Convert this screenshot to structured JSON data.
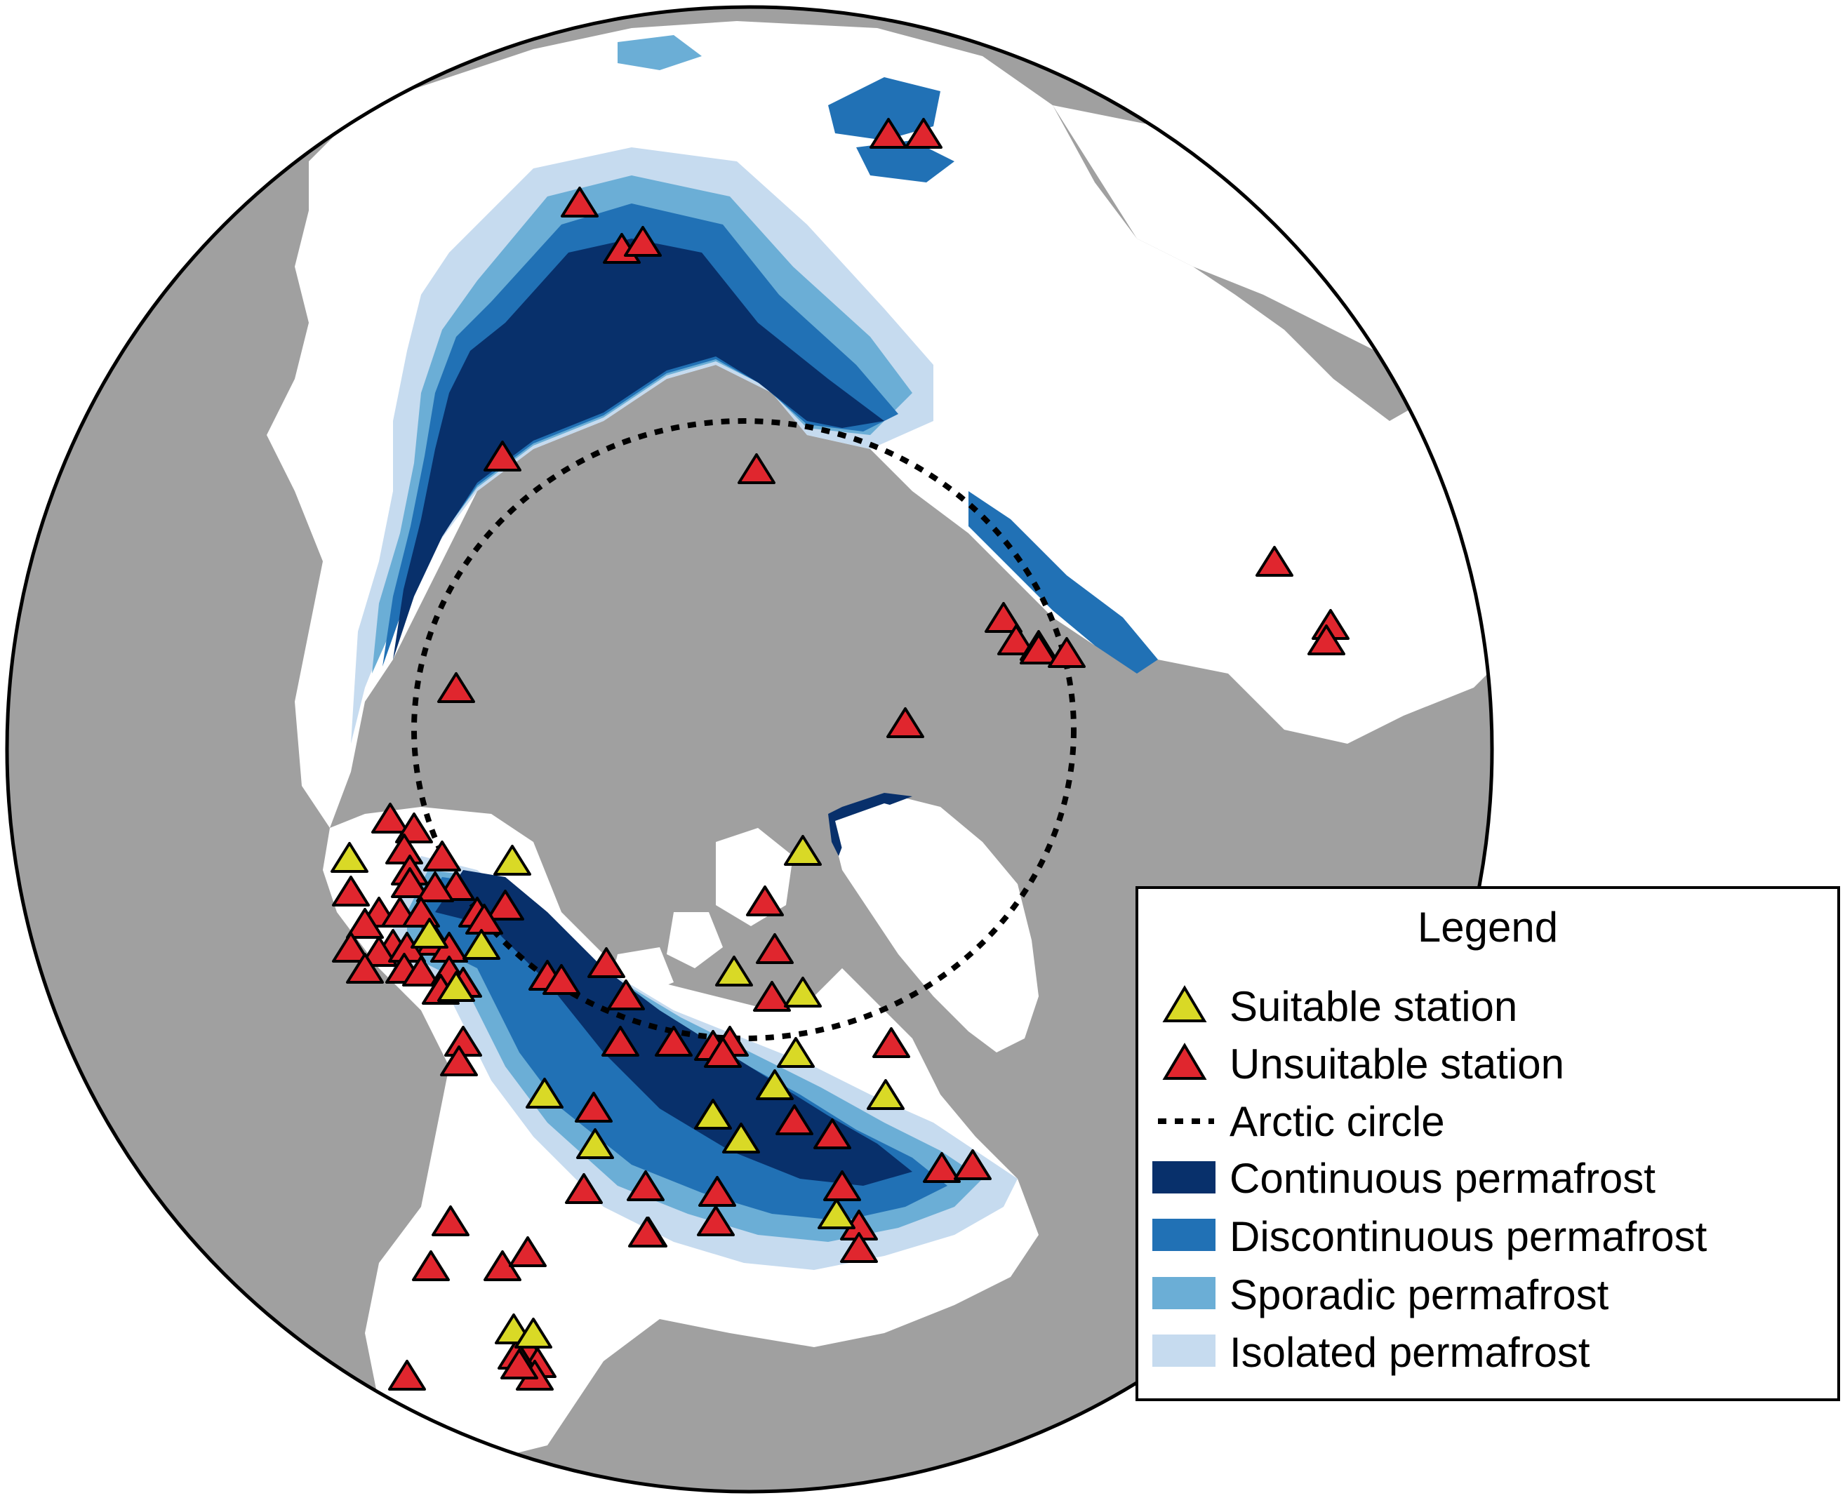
{
  "legend": {
    "title": "Legend",
    "items": [
      {
        "id": "suitable",
        "label": "Suitable station",
        "symbol": "triangle",
        "color": "#d9d926"
      },
      {
        "id": "unsuitable",
        "label": "Unsuitable station",
        "symbol": "triangle",
        "color": "#e0262e"
      },
      {
        "id": "arctic",
        "label": "Arctic circle",
        "symbol": "dashed-line",
        "color": "#000000"
      },
      {
        "id": "continuous",
        "label": "Continuous permafrost",
        "symbol": "patch",
        "color": "#08306b"
      },
      {
        "id": "discontinuous",
        "label": "Discontinuous permafrost",
        "symbol": "patch",
        "color": "#2171b5"
      },
      {
        "id": "sporadic",
        "label": "Sporadic permafrost",
        "symbol": "patch",
        "color": "#6baed6"
      },
      {
        "id": "isolated",
        "label": "Isolated permafrost",
        "symbol": "patch",
        "color": "#c6dbef"
      }
    ]
  },
  "colors": {
    "ocean": "#a0a0a0",
    "land": "#ffffff",
    "outline": "#000000"
  }
}
